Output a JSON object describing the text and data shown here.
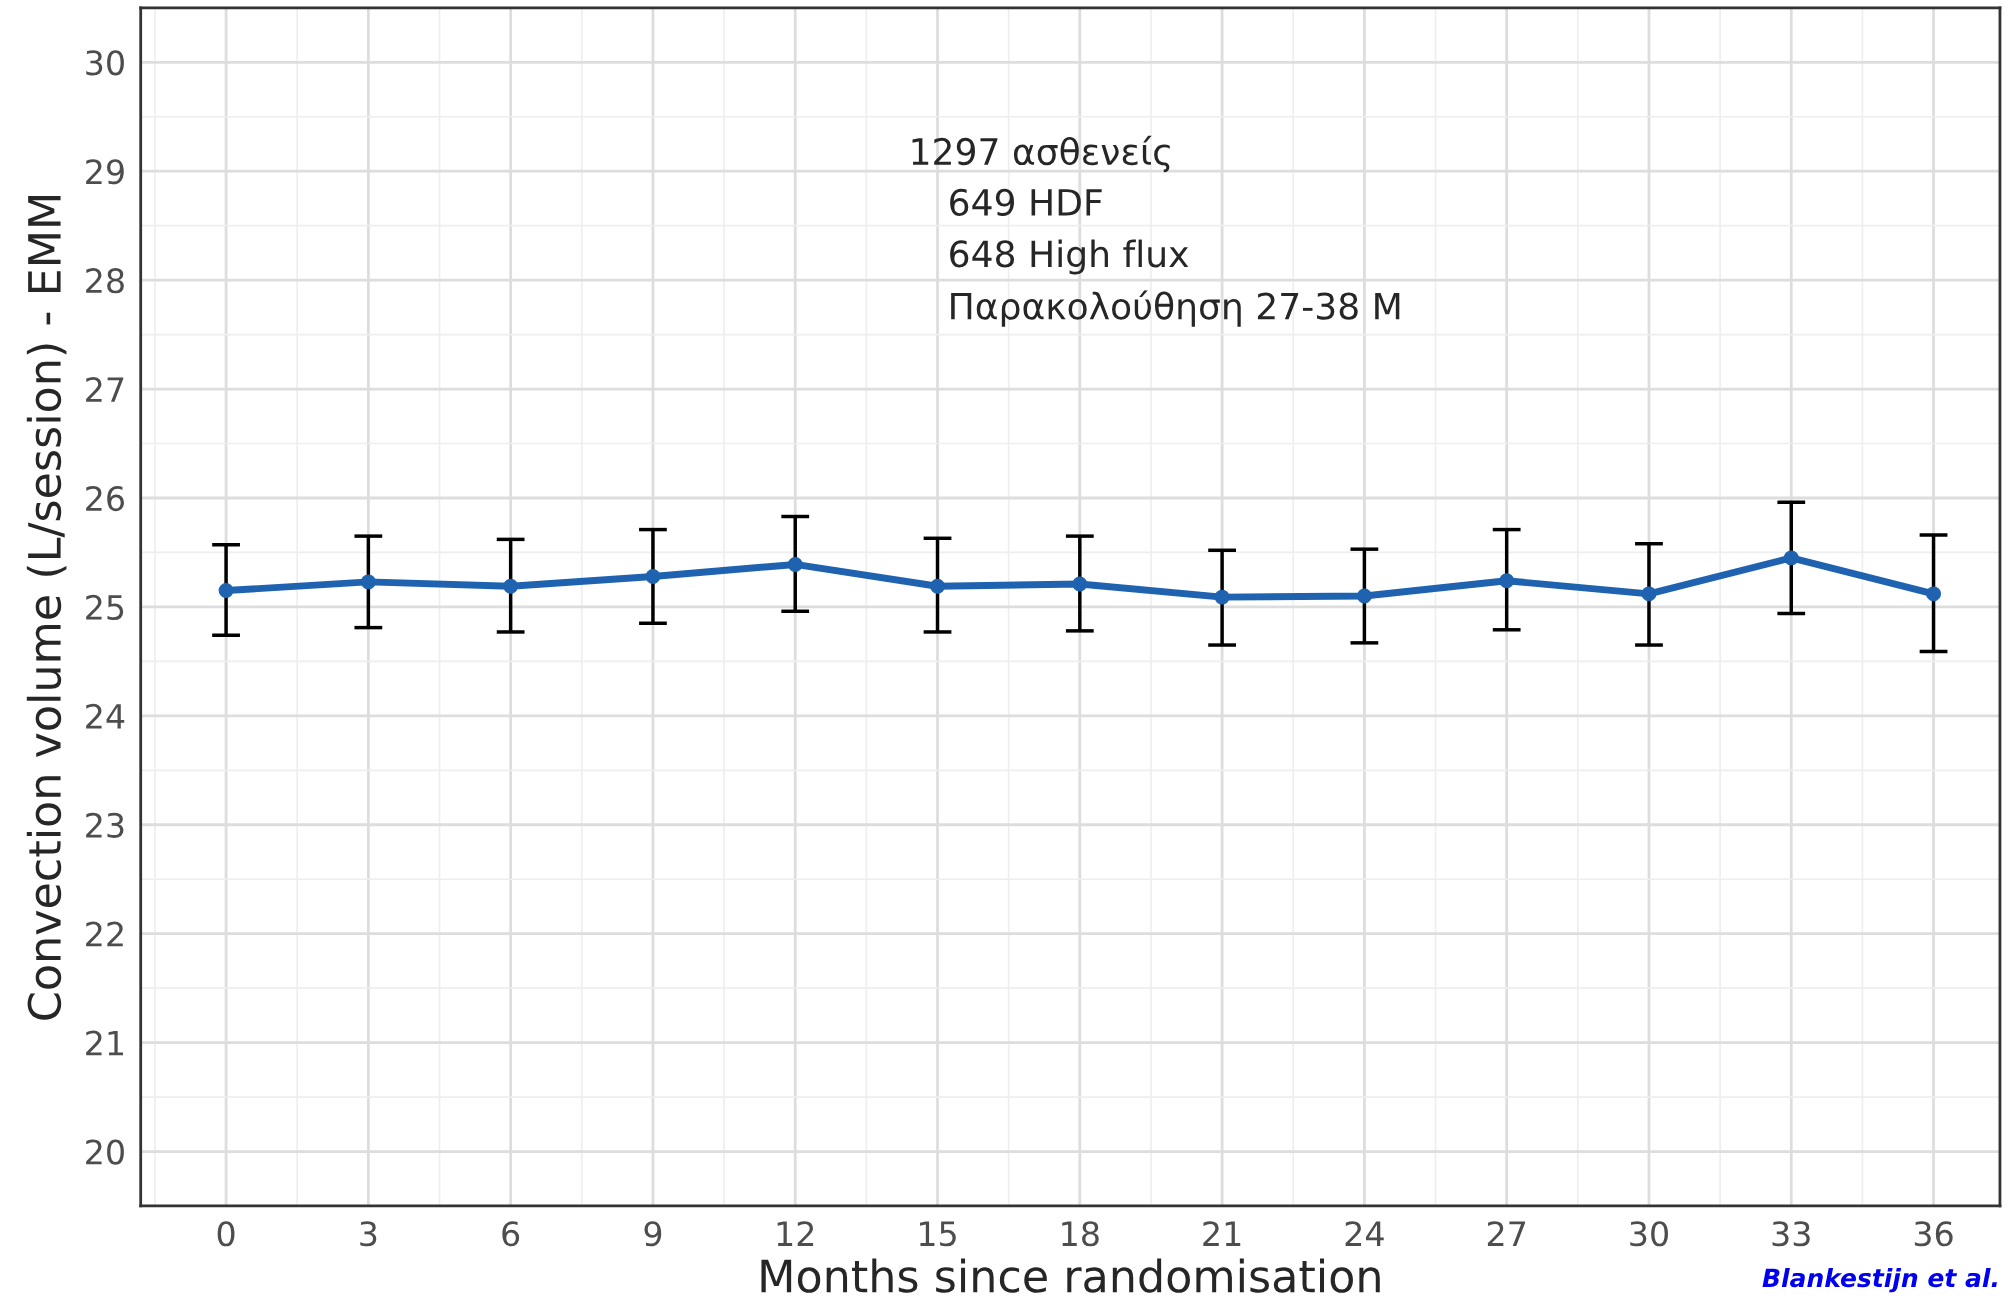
{
  "chart_data": {
    "type": "line",
    "xlabel": "Months since randomisation",
    "ylabel": "Convection volume (L/session) - EMM",
    "x": [
      0,
      3,
      6,
      9,
      12,
      15,
      18,
      21,
      24,
      27,
      30,
      33,
      36
    ],
    "series": [
      {
        "color": "#1f63b0",
        "values": [
          25.15,
          25.23,
          25.19,
          25.28,
          25.39,
          25.19,
          25.21,
          25.09,
          25.1,
          25.24,
          25.12,
          25.45,
          25.12
        ],
        "errors": [
          [
            24.74,
            25.57
          ],
          [
            24.81,
            25.65
          ],
          [
            24.77,
            25.62
          ],
          [
            24.85,
            25.71
          ],
          [
            24.96,
            25.83
          ],
          [
            24.77,
            25.63
          ],
          [
            24.78,
            25.65
          ],
          [
            24.65,
            25.52
          ],
          [
            24.67,
            25.53
          ],
          [
            24.79,
            25.71
          ],
          [
            24.65,
            25.58
          ],
          [
            24.94,
            25.96
          ],
          [
            24.59,
            25.66
          ]
        ]
      }
    ],
    "marker": "circle",
    "line_style": "solid",
    "grid": true,
    "xlim": [
      -1.8,
      37.4
    ],
    "ylim": [
      19.5,
      30.5
    ],
    "xticks": [
      0,
      3,
      6,
      9,
      12,
      15,
      18,
      21,
      24,
      27,
      30,
      33,
      36
    ],
    "yticks": [
      20,
      21,
      22,
      23,
      24,
      25,
      26,
      27,
      28,
      29,
      30
    ],
    "annotations": [
      "1297 ασθενείς",
      "649 HDF",
      "648 High flux",
      "Παρακολούθηση 27-38 Μ",
      "Blankestijn et al."
    ]
  }
}
